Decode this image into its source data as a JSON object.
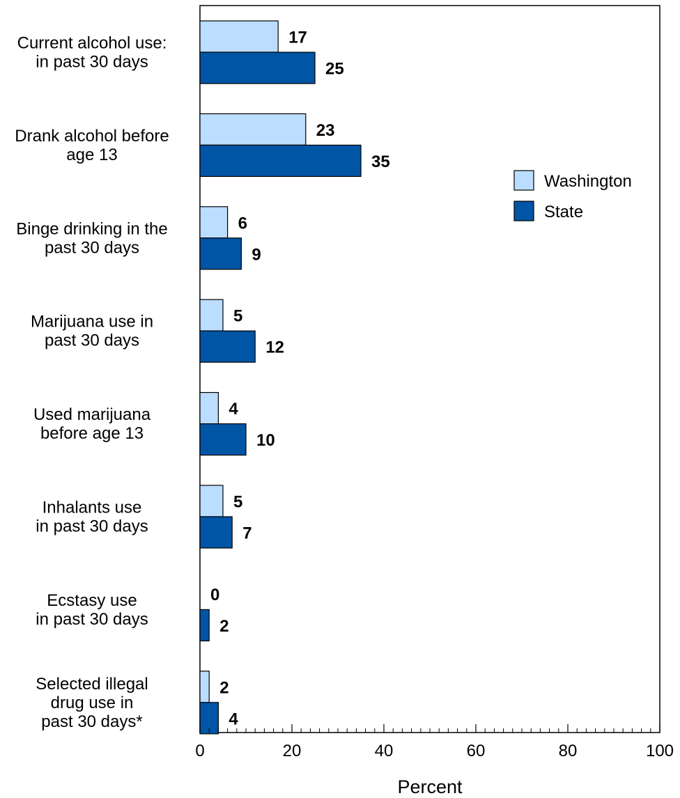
{
  "chart_data": {
    "type": "bar",
    "orientation": "horizontal",
    "categories": [
      [
        "Current alcohol use:",
        "in past 30 days"
      ],
      [
        "Drank alcohol before",
        "age 13"
      ],
      [
        "Binge drinking in the",
        "past 30 days"
      ],
      [
        "Marijuana use in",
        "past 30 days"
      ],
      [
        "Used marijuana",
        "before age 13"
      ],
      [
        "Inhalants use",
        "in past 30 days"
      ],
      [
        "Ecstasy use",
        "in past 30 days"
      ],
      [
        "Selected illegal",
        "drug use in",
        "past 30 days*"
      ]
    ],
    "series": [
      {
        "name": "Washington",
        "color": "#BBDDFF",
        "values": [
          17,
          23,
          6,
          5,
          4,
          5,
          0,
          2
        ],
        "labels": [
          "17",
          "23",
          "6",
          "5",
          "4",
          "5",
          "0",
          "2"
        ]
      },
      {
        "name": "State",
        "color": "#0055A5",
        "values": [
          25,
          35,
          9,
          12,
          10,
          7,
          2,
          4
        ],
        "labels": [
          "25",
          "35",
          "9",
          "12",
          "10",
          "7",
          "2",
          "4"
        ]
      }
    ],
    "xlabel": "Percent",
    "xlim": [
      0,
      100
    ],
    "xticks": [
      0,
      20,
      40,
      60,
      80,
      100
    ],
    "xtick_labels": [
      "0",
      "20",
      "40",
      "60",
      "80",
      "100"
    ],
    "minor_tick_step": 2,
    "grid": false,
    "legend_position": "right"
  }
}
